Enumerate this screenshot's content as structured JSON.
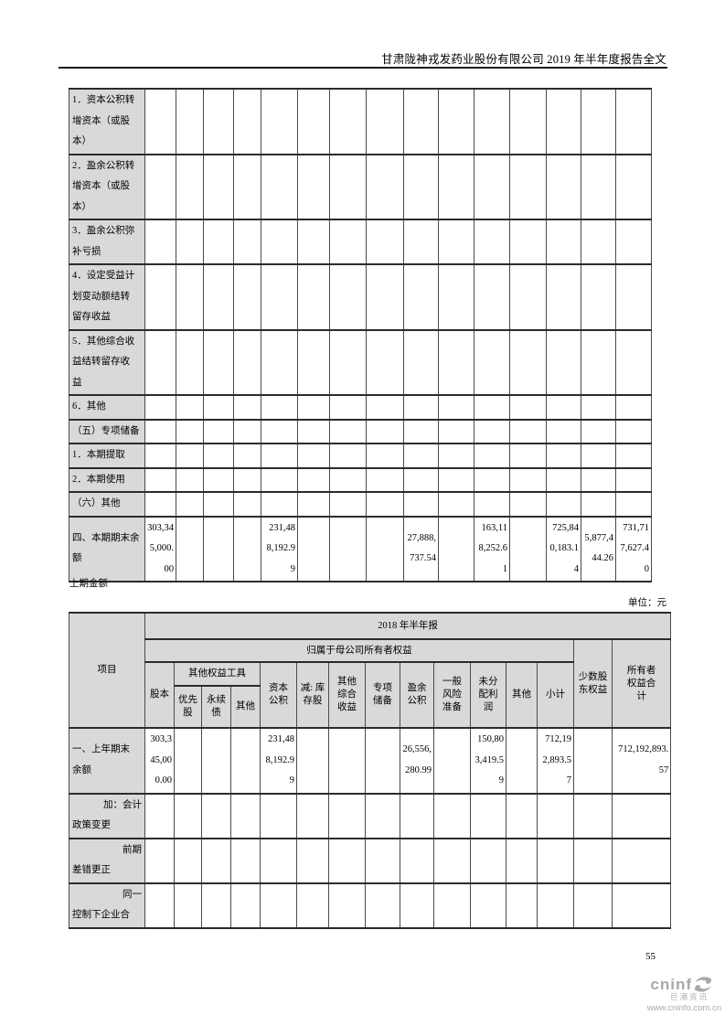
{
  "page": {
    "header_title": "甘肃陇神戎发药业股份有限公司 2019 年半年度报告全文",
    "prior_section_label": "上期金额",
    "unit_label": "单位：元",
    "page_number": "55",
    "logo": {
      "brand": "cninf",
      "name_cn": "巨潮资讯",
      "url": "www.cninfo.com.cn",
      "icon": "swirl-icon",
      "color": "#a9a9a9"
    }
  },
  "colors": {
    "cell_shade": "#d9d9d9",
    "grid_line": "#2b2b2b"
  },
  "table_current": {
    "description_rows_then_totals": true,
    "rows": [
      {
        "label": "1．资本公积转\n增资本（或股\n本）",
        "values": [
          "",
          "",
          "",
          "",
          "",
          "",
          "",
          "",
          "",
          "",
          "",
          "",
          "",
          "",
          ""
        ]
      },
      {
        "label": "2．盈余公积转\n增资本（或股\n本）",
        "values": [
          "",
          "",
          "",
          "",
          "",
          "",
          "",
          "",
          "",
          "",
          "",
          "",
          "",
          "",
          ""
        ]
      },
      {
        "label": "3．盈余公积弥\n补亏损",
        "values": [
          "",
          "",
          "",
          "",
          "",
          "",
          "",
          "",
          "",
          "",
          "",
          "",
          "",
          "",
          ""
        ]
      },
      {
        "label": "4．设定受益计\n划变动额结转\n留存收益",
        "values": [
          "",
          "",
          "",
          "",
          "",
          "",
          "",
          "",
          "",
          "",
          "",
          "",
          "",
          "",
          ""
        ]
      },
      {
        "label": "5．其他综合收\n益结转留存收\n益",
        "values": [
          "",
          "",
          "",
          "",
          "",
          "",
          "",
          "",
          "",
          "",
          "",
          "",
          "",
          "",
          ""
        ]
      },
      {
        "label": "6．其他",
        "values": [
          "",
          "",
          "",
          "",
          "",
          "",
          "",
          "",
          "",
          "",
          "",
          "",
          "",
          "",
          ""
        ]
      },
      {
        "label": "（五）专项储备",
        "values": [
          "",
          "",
          "",
          "",
          "",
          "",
          "",
          "",
          "",
          "",
          "",
          "",
          "",
          "",
          ""
        ]
      },
      {
        "label": "1．本期提取",
        "values": [
          "",
          "",
          "",
          "",
          "",
          "",
          "",
          "",
          "",
          "",
          "",
          "",
          "",
          "",
          ""
        ]
      },
      {
        "label": "2．本期使用",
        "values": [
          "",
          "",
          "",
          "",
          "",
          "",
          "",
          "",
          "",
          "",
          "",
          "",
          "",
          "",
          ""
        ]
      },
      {
        "label": "（六）其他",
        "values": [
          "",
          "",
          "",
          "",
          "",
          "",
          "",
          "",
          "",
          "",
          "",
          "",
          "",
          "",
          ""
        ]
      },
      {
        "label": "四、本期期末余\n额",
        "values": [
          "303,345,000.00",
          "",
          "",
          "",
          "231,488,192.99",
          "",
          "",
          "",
          "27,888,737.54",
          "",
          "163,118,252.61",
          "",
          "725,840,183.14",
          "5,877,444.26",
          "731,717,627.40"
        ]
      }
    ]
  },
  "table_prior": {
    "header": {
      "project": "项目",
      "period": "2018 年半年报",
      "parent_group": "归属于母公司所有者权益",
      "share_capital": "股本",
      "other_equity_tools": "其他权益工具",
      "preferred_stock": "优先\n股",
      "perpetual_bond": "永续\n债",
      "oet_other": "其他",
      "capital_reserve": "资本\n公积",
      "less_treasury_stock": "减: 库\n存股",
      "other_comprehensive_income": "其他\n综合\n收益",
      "special_reserve": "专项\n储备",
      "surplus_reserve": "盈余\n公积",
      "general_risk_reserve": "一般\n风险\n准备",
      "undistributed_profit": "未分\n配利\n润",
      "other": "其他",
      "subtotal": "小计",
      "minority_interest": "少数股\n东权益",
      "total_equity": "所有者\n权益合\n计"
    },
    "rows": [
      {
        "label": "一、上年期末\n余额",
        "values": [
          "303,345,000.00",
          "",
          "",
          "",
          "231,488,192.99",
          "",
          "",
          "",
          "26,556,280.99",
          "",
          "150,803,419.59",
          "",
          "712,192,893.57",
          "",
          "712,192,893.57"
        ]
      },
      {
        "label": "加：会计\n政策变更",
        "indent": true,
        "values": [
          "",
          "",
          "",
          "",
          "",
          "",
          "",
          "",
          "",
          "",
          "",
          "",
          "",
          "",
          ""
        ]
      },
      {
        "label": "前期\n差错更正",
        "indent": true,
        "values": [
          "",
          "",
          "",
          "",
          "",
          "",
          "",
          "",
          "",
          "",
          "",
          "",
          "",
          "",
          ""
        ]
      },
      {
        "label": "同一\n控制下企业合",
        "indent": true,
        "values": [
          "",
          "",
          "",
          "",
          "",
          "",
          "",
          "",
          "",
          "",
          "",
          "",
          "",
          "",
          ""
        ]
      }
    ]
  }
}
